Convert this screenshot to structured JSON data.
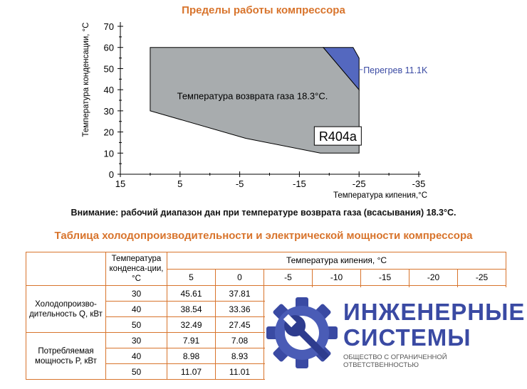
{
  "chart_title": "Пределы работы компрессора",
  "note": "Внимание: рабочий диапазон дан при температуре возврата газа (всасывания) 18.3°С.",
  "table_title": "Таблица холодопроизводительности и электрической мощности компрессора",
  "chart_data": {
    "type": "area",
    "xlabel": "Температура кипения,°С",
    "ylabel": "Температура конденсации, °С",
    "xlim": [
      15,
      -35
    ],
    "ylim": [
      0,
      70
    ],
    "x_ticks": [
      "15",
      "5",
      "-5",
      "-15",
      "-25",
      "-35"
    ],
    "y_ticks": [
      "0",
      "10",
      "20",
      "30",
      "40",
      "50",
      "60",
      "70"
    ],
    "envelope": [
      [
        10,
        60
      ],
      [
        -19,
        60
      ],
      [
        -25,
        40
      ],
      [
        -25,
        10
      ],
      [
        -18.5,
        10
      ],
      [
        -6,
        17
      ],
      [
        10,
        30
      ]
    ],
    "superheat_region": [
      [
        -19,
        60
      ],
      [
        -24,
        60
      ],
      [
        -25,
        55
      ],
      [
        -25,
        40
      ]
    ],
    "annotation_return_gas": "Температура возврата газа 18.3°С.",
    "annotation_superheat": "Перегрев 11.1K",
    "refrigerant_label": "R404a",
    "colors": {
      "envelope": "#a8acae",
      "superheat": "#5468bf",
      "title": "#d8742c"
    }
  },
  "table": {
    "col_header_cond": "Температура конденса-ции, °С",
    "col_header_evap": "Температура кипения, °С",
    "evap_temps": [
      "5",
      "0",
      "-5",
      "-10",
      "-15",
      "-20",
      "-25"
    ],
    "groups": [
      {
        "label": "Холодопроизво-дительность Q, кВт",
        "rows": [
          {
            "cond": "30",
            "values": [
              "45.61",
              "37.81"
            ]
          },
          {
            "cond": "40",
            "values": [
              "38.54",
              "33.36"
            ]
          },
          {
            "cond": "50",
            "values": [
              "32.49",
              "27.45"
            ]
          }
        ]
      },
      {
        "label": "Потребляемая мощность P, кВт",
        "rows": [
          {
            "cond": "30",
            "values": [
              "7.91",
              "7.08"
            ]
          },
          {
            "cond": "40",
            "values": [
              "8.98",
              "8.93"
            ]
          },
          {
            "cond": "50",
            "values": [
              "11.07",
              "11.01"
            ]
          }
        ]
      }
    ]
  },
  "logo": {
    "line1": "ИНЖЕНЕРНЫЕ",
    "line2": "СИСТЕМЫ",
    "subtitle": "ОБЩЕСТВО С ОГРАНИЧЕННОЙ ОТВЕТСТВЕННОСТЬЮ",
    "color": "#3a4aa3"
  }
}
